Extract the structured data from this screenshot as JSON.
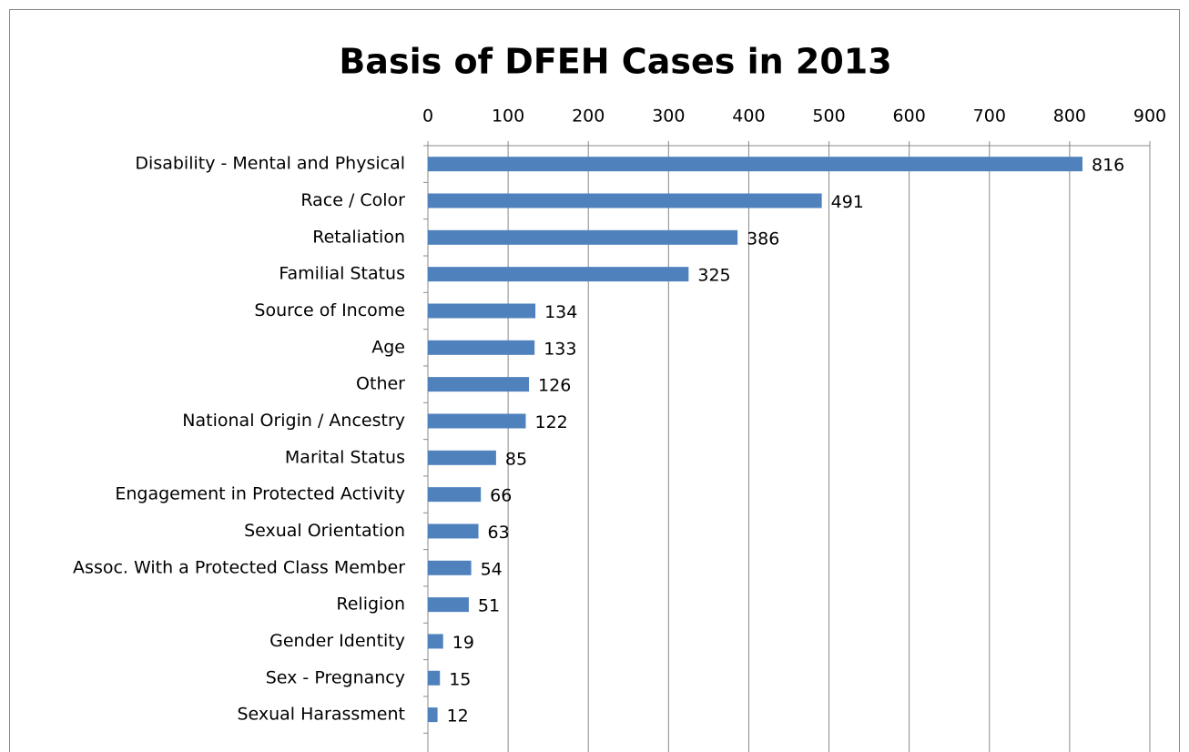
{
  "chart_data": {
    "type": "bar",
    "orientation": "horizontal",
    "title": "Basis of DFEH Cases in 2013",
    "categories": [
      "Disability - Mental and Physical",
      "Race / Color",
      "Retaliation",
      "Familial Status",
      "Source of Income",
      "Age",
      "Other",
      "National Origin / Ancestry",
      "Marital Status",
      "Engagement in Protected Activity",
      "Sexual Orientation",
      "Assoc. With a Protected Class Member",
      "Religion",
      "Gender Identity",
      "Sex - Pregnancy",
      "Sexual Harassment"
    ],
    "values": [
      816,
      491,
      386,
      325,
      134,
      133,
      126,
      122,
      85,
      66,
      63,
      54,
      51,
      19,
      15,
      12
    ],
    "color": "#4f81bd",
    "xlim": [
      0,
      900
    ],
    "xticks": [
      0,
      100,
      200,
      300,
      400,
      500,
      600,
      700,
      800,
      900
    ],
    "grid": true
  }
}
